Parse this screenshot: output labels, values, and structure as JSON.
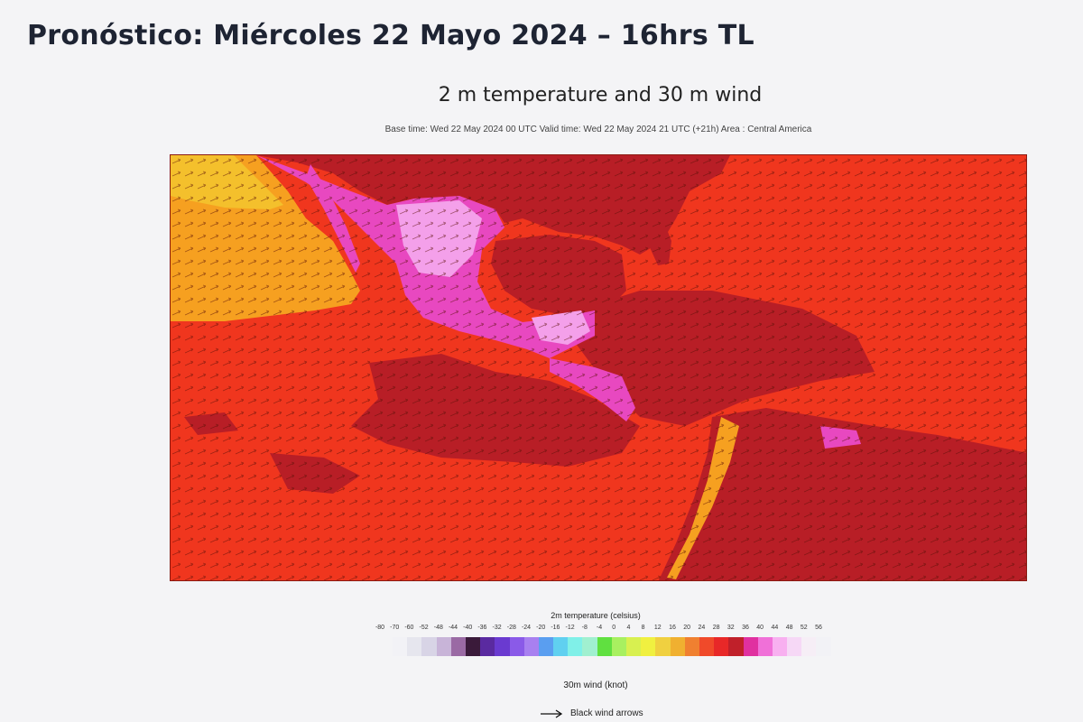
{
  "slide": {
    "title": "Pronóstico: Miércoles 22 Mayo 2024 – 16hrs TL"
  },
  "map": {
    "title": "2 m temperature and 30 m wind",
    "subtitle": "Base time: Wed 22 May 2024 00 UTC Valid time: Wed 22 May 2024 21 UTC (+21h) Area : Central America",
    "region": "Central America",
    "colors": {
      "ocean": "#f0361e",
      "hot": "#b81e26",
      "very_hot": "#e848c0",
      "extreme": "#f4a0ea",
      "cool": "#f6a020",
      "coolest": "#f4c02c"
    }
  },
  "legend": {
    "title": "2m temperature (celsius)",
    "ticks": [
      "-80",
      "-70",
      "-60",
      "-52",
      "-48",
      "-44",
      "-40",
      "-36",
      "-32",
      "-28",
      "-24",
      "-20",
      "-16",
      "-12",
      "-8",
      "-4",
      "0",
      "4",
      "8",
      "12",
      "16",
      "20",
      "24",
      "28",
      "32",
      "36",
      "40",
      "44",
      "48",
      "52",
      "56"
    ],
    "colors": [
      "#f2f2f6",
      "#e6e6ee",
      "#d8d4e6",
      "#c8b4d8",
      "#9a6aa4",
      "#3a1a3a",
      "#5a2aa0",
      "#6a3ad0",
      "#8a5ae8",
      "#a880f0",
      "#5a9ef0",
      "#60d0f0",
      "#80f0e8",
      "#a0f0d0",
      "#60e040",
      "#a8f060",
      "#d8f050",
      "#f0f040",
      "#f0d040",
      "#f0b030",
      "#f08030",
      "#f04a2a",
      "#e82828",
      "#c0202a",
      "#e030a0",
      "#f070d8",
      "#f8b0f0",
      "#f6d8f6",
      "#f6eef6",
      "#f2f2f6"
    ]
  },
  "wind_legend": {
    "title": "30m wind (knot)",
    "label": "Black wind arrows",
    "icon": "arrow-right-icon"
  }
}
